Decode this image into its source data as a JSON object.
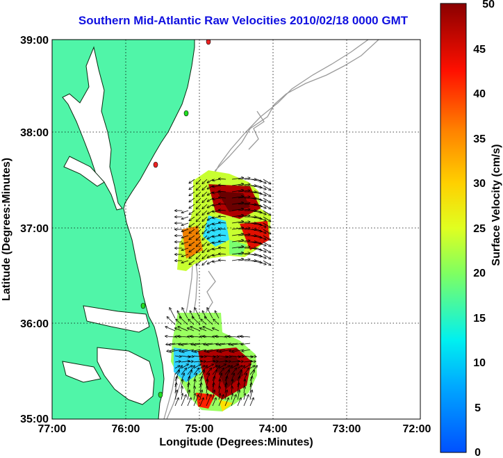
{
  "title": "Southern Mid-Atlantic Raw Velocities 2010/02/18 0000 GMT",
  "xlabel": "Longitude (Degrees:Minutes)",
  "ylabel": "Latitude (Degrees:Minutes)",
  "colorbar_label": "Surface Velocity (cm/s)",
  "x_ticks": [
    "77:00",
    "76:00",
    "75:00",
    "74:00",
    "73:00",
    "72:00"
  ],
  "y_ticks": [
    "39:00",
    "38:00",
    "37:00",
    "36:00",
    "35:00"
  ],
  "colorbar_ticks": [
    "50",
    "45",
    "40",
    "35",
    "30",
    "25",
    "20",
    "15",
    "10",
    "5",
    "0"
  ],
  "colors": {
    "land": "#50f5a8",
    "coast": "#0a2a10",
    "bathymetry": "#9a9a9a",
    "title": "#1010e0",
    "station_green": "#22dd22",
    "station_red": "#ee2222"
  }
}
